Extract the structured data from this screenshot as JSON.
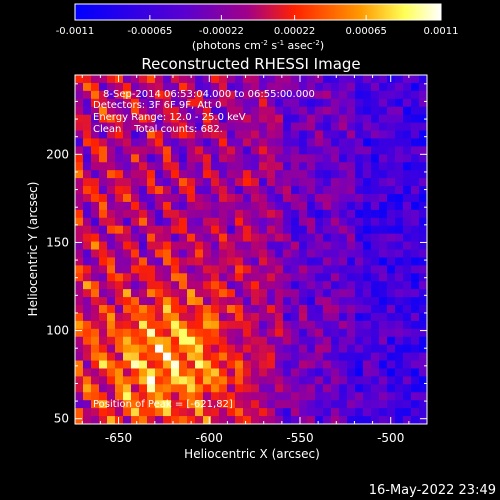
{
  "colorbar": {
    "tick_labels": [
      "-0.0011",
      "-0.00065",
      "-0.00022",
      "0.00022",
      "0.00065",
      "0.0011"
    ],
    "tick_values": [
      -0.0011,
      -0.00065,
      -0.00022,
      0.00022,
      0.00065,
      0.0011
    ],
    "range": [
      -0.0011,
      0.0011
    ],
    "units": "(photons cm",
    "units_sup1": "-2",
    "units_mid": " s",
    "units_sup2": "-1",
    "units_mid2": " asec",
    "units_sup3": "-2",
    "units_end": ")",
    "colors": [
      "#0000ff",
      "#6a00c8",
      "#b0007a",
      "#ff2200",
      "#ff9900",
      "#ffff66",
      "#ffffff"
    ]
  },
  "chart_data": {
    "type": "heatmap",
    "title": "Reconstructed RHESSI Image",
    "xlabel": "Heliocentric X (arcsec)",
    "ylabel": "Heliocentric Y (arcsec)",
    "xlim": [
      -674,
      -480
    ],
    "ylim": [
      47,
      245
    ],
    "x_ticks": [
      -650,
      -600,
      -550,
      -500
    ],
    "x_tick_labels": [
      "-650",
      "-600",
      "-550",
      "-500"
    ],
    "y_ticks": [
      50,
      100,
      150,
      200
    ],
    "y_tick_labels": [
      "50",
      "100",
      "150",
      "200"
    ],
    "value_range": [
      -0.0011,
      0.0011
    ],
    "peak": [
      -621,
      82
    ],
    "annotations": [
      "8-Sep-2014 06:53:04.000 to 06:55:00.000",
      "Detectors: 3F 6F 9F, Att 0",
      "Energy Range: 12.0 - 25.0 keV",
      "Clean    Total counts: 682.",
      "Position of Peak = [-621,82]"
    ]
  },
  "footer": {
    "timestamp": "16-May-2022 23:49"
  }
}
